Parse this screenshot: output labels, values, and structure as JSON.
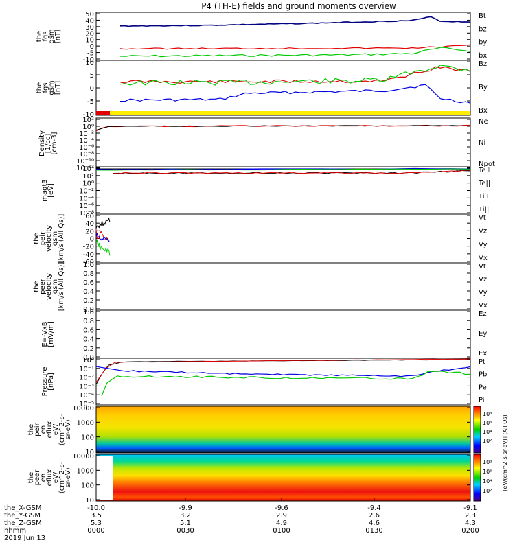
{
  "title": "P4 (TH-E) fields and ground moments overview",
  "colors": {
    "black": "#000000",
    "red": "#e00000",
    "green": "#00c800",
    "blue": "#0000e0",
    "yellow": "#ffee00",
    "navy": "#000080"
  },
  "panels": [
    {
      "id": "fgs_gsm",
      "ylabel": [
        "the",
        "fgs",
        "gsm",
        "[nT]"
      ],
      "ticks": [
        "50",
        "40",
        "30",
        "20",
        "10",
        "0",
        "-5",
        "-10"
      ],
      "legend": [
        {
          "text": "Bt",
          "color": "#000000"
        },
        {
          "text": "bz",
          "color": "#e00000"
        },
        {
          "text": "by",
          "color": "#00c800"
        },
        {
          "text": "bx",
          "color": "#0000e0"
        }
      ]
    },
    {
      "id": "fgs_dsl",
      "ylabel": [
        "the",
        "fgs",
        "gsm",
        "[nT]"
      ],
      "ticks": [
        "10",
        "5",
        "0",
        "-5",
        "-10"
      ],
      "legend": [
        {
          "text": "Bz",
          "color": "#e00000"
        },
        {
          "text": "By",
          "color": "#00c800"
        },
        {
          "text": "Bx",
          "color": "#0000e0"
        }
      ]
    },
    {
      "id": "density",
      "ylabel": [
        "Density",
        "[1/cc]",
        "[cm-3]"
      ],
      "ticks": [
        "10²",
        "10⁰",
        "10⁻²",
        "10⁻⁴",
        "10⁻⁶",
        "10⁻⁸",
        "10⁻¹⁰",
        "10⁻¹²"
      ],
      "legend": [
        {
          "text": "Ne",
          "color": "#e00000"
        },
        {
          "text": "Ni",
          "color": "#000000"
        },
        {
          "text": "Npot",
          "color": "#0000e0"
        }
      ]
    },
    {
      "id": "temp",
      "ylabel": [
        "magt3",
        "[eV]"
      ],
      "ticks": [
        "10⁴",
        "10²",
        "10⁰",
        "10⁻²",
        "10⁻⁴",
        "10⁻⁶",
        "10⁻⁸"
      ],
      "legend": [
        {
          "text": "Te⊥",
          "color": "#e00000"
        },
        {
          "text": "Te||",
          "color": "#000000"
        },
        {
          "text": "Ti⊥",
          "color": "#0000e0"
        },
        {
          "text": "Ti||",
          "color": "#00c800"
        }
      ]
    },
    {
      "id": "peir_vel",
      "ylabel": [
        "the",
        "peir",
        "velocity",
        "gsm",
        "[km/s (All Qs)]"
      ],
      "ticks": [
        "60",
        "40",
        "20",
        "0",
        "-20",
        "-40",
        "-60"
      ],
      "legend": [
        {
          "text": "Vt",
          "color": "#000000"
        },
        {
          "text": "Vz",
          "color": "#e00000"
        },
        {
          "text": "Vy",
          "color": "#00c800"
        },
        {
          "text": "Vx",
          "color": "#0000e0"
        }
      ]
    },
    {
      "id": "peer_vel",
      "ylabel": [
        "the",
        "peer",
        "velocity",
        "gsm",
        "[km/s (All Qs)]"
      ],
      "ticks": [
        "1.0",
        "0.8",
        "0.6",
        "0.4",
        "0.2",
        "0.0"
      ],
      "legend": [
        {
          "text": "Vt",
          "color": "#000000"
        },
        {
          "text": "Vz",
          "color": "#e00000"
        },
        {
          "text": "Vy",
          "color": "#00c800"
        },
        {
          "text": "Vx",
          "color": "#0000e0"
        }
      ]
    },
    {
      "id": "efield",
      "ylabel": [
        "E=-VxB",
        "[mV/m]"
      ],
      "ticks": [
        "1.0",
        "0.8",
        "0.6",
        "0.4",
        "0.2",
        "0.0"
      ],
      "legend": [
        {
          "text": "Ez",
          "color": "#e00000"
        },
        {
          "text": "Ey",
          "color": "#00c800"
        },
        {
          "text": "Ex",
          "color": "#0000e0"
        }
      ]
    },
    {
      "id": "pressure",
      "ylabel": [
        "Pressure",
        "[nPa]"
      ],
      "ticks": [
        "10⁰",
        "10⁻¹",
        "10⁻²",
        "10⁻³",
        "10⁻⁴",
        "10⁻⁵"
      ],
      "legend": [
        {
          "text": "Pt",
          "color": "#000000"
        },
        {
          "text": "Pb",
          "color": "#e00000"
        },
        {
          "text": "Pe",
          "color": "#00c800"
        },
        {
          "text": "Pi",
          "color": "#0000e0"
        }
      ]
    },
    {
      "id": "peir_spec",
      "ylabel": [
        "the",
        "peir",
        "en",
        "eflux",
        "eV/",
        "(cm^2-s-",
        "sr-eV)"
      ],
      "ticks": [
        "10000",
        "1000",
        "100",
        "10"
      ]
    },
    {
      "id": "peer_spec",
      "ylabel": [
        "the",
        "peer",
        "en",
        "eflux",
        "eV/",
        "(cm^2-s-",
        "sr-eV)"
      ],
      "ticks": [
        "10000",
        "1000",
        "100",
        "10"
      ]
    }
  ],
  "colorbar": {
    "label": "[eV/(cm^2-s-sr-eV)] (All Qs)",
    "ticks_top": [
      "10⁸",
      "10⁶",
      "10⁴",
      "10²"
    ],
    "ticks_bottom": [
      "10⁸",
      "10⁶",
      "10⁴",
      "10²"
    ]
  },
  "footer": {
    "rows": [
      {
        "label": "the_X-GSM",
        "values": [
          "-10.0",
          "-9.9",
          "-9.6",
          "-9.4",
          "-9.1"
        ]
      },
      {
        "label": "the_Y-GSM",
        "values": [
          "3.5",
          "3.2",
          "2.9",
          "2.6",
          "2.3"
        ]
      },
      {
        "label": "the_Z-GSM",
        "values": [
          "5.3",
          "5.1",
          "4.9",
          "4.6",
          "4.3"
        ]
      },
      {
        "label": "hhmm",
        "values": [
          "0000",
          "0030",
          "0100",
          "0130",
          "0200"
        ]
      }
    ],
    "date": "2019 Jun 13"
  },
  "chart_data": {
    "type": "line",
    "title": "P4 (TH-E) fields and ground moments overview",
    "x": [
      "0000",
      "0030",
      "0100",
      "0130",
      "0200"
    ],
    "xlabel": "hhmm",
    "panels": [
      {
        "name": "fgs_gsm",
        "ylim": [
          -10,
          55
        ],
        "series": [
          {
            "name": "Bt",
            "values": [
              33,
              33,
              38,
              42,
              40
            ]
          },
          {
            "name": "bz",
            "values": [
              6,
              5,
              5,
              6,
              7
            ]
          },
          {
            "name": "by",
            "values": [
              -3,
              -3,
              -2,
              -1,
              1
            ]
          },
          {
            "name": "bx",
            "values": [
              -8,
              -8,
              -7,
              -6,
              -5
            ]
          }
        ]
      },
      {
        "name": "fgs_dsl",
        "ylim": [
          -13,
          13
        ],
        "series": [
          {
            "name": "Bz",
            "values": [
              4,
              4,
              4,
              5,
              8
            ]
          },
          {
            "name": "By",
            "values": [
              3,
              4,
              4,
              4,
              6
            ]
          },
          {
            "name": "Bx",
            "values": [
              -6,
              -6,
              -2,
              -1,
              -8
            ]
          }
        ]
      },
      {
        "name": "density",
        "log": true,
        "series": [
          {
            "name": "Ne",
            "values": [
              0.5,
              0.6,
              0.6,
              0.8,
              1.0
            ]
          },
          {
            "name": "Ni",
            "values": [
              0.5,
              0.6,
              0.6,
              0.8,
              1.0
            ]
          }
        ]
      },
      {
        "name": "temp",
        "log": true,
        "series": [
          {
            "name": "Te⊥",
            "values": [
              200,
              200,
              300,
              300,
              600
            ]
          },
          {
            "name": "Te||",
            "values": [
              300,
              300,
              400,
              400,
              800
            ]
          },
          {
            "name": "Ti⊥",
            "values": [
              2000,
              2500,
              2800,
              3000,
              4000
            ]
          },
          {
            "name": "Ti||",
            "values": [
              1800,
              2200,
              2500,
              2800,
              3500
            ]
          }
        ]
      },
      {
        "name": "pressure",
        "log": true,
        "series": [
          {
            "name": "Pt",
            "values": [
              0.2,
              0.3,
              0.4,
              0.5,
              0.6
            ]
          },
          {
            "name": "Pb",
            "values": [
              0.3,
              0.35,
              0.4,
              0.45,
              0.5
            ]
          },
          {
            "name": "Pe",
            "values": [
              0.004,
              0.004,
              0.005,
              0.006,
              0.03
            ]
          },
          {
            "name": "Pi",
            "values": [
              0.02,
              0.02,
              0.02,
              0.02,
              0.05
            ]
          }
        ]
      }
    ]
  }
}
